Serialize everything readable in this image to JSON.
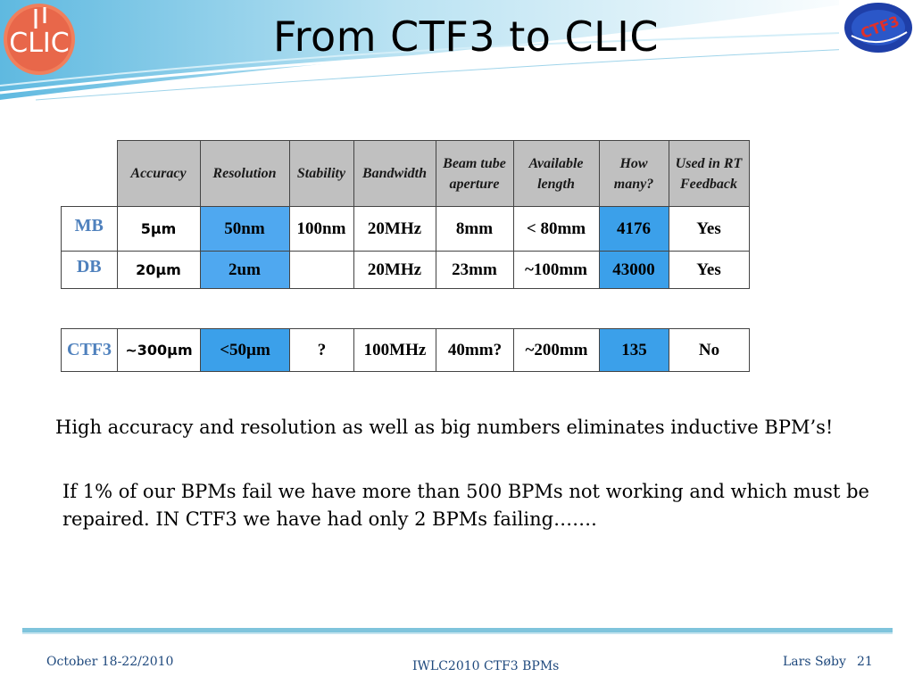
{
  "header": {
    "title": "From CTF3 to CLIC",
    "logo_left_text": "CLIC",
    "logo_right_text": "CTF3"
  },
  "colors": {
    "highlight": "#4fa8f0",
    "header_fill": "#c0c0c0",
    "label_blue": "#4f81bd",
    "footer_text": "#1f497d"
  },
  "table1": {
    "headers": [
      "Accuracy",
      "Resolution",
      "Stability",
      "Bandwidth",
      "Beam tube aperture",
      "Available length",
      "How many?",
      "Used in RT Feedback"
    ],
    "rows": [
      {
        "label": "MB",
        "accuracy": "5µm",
        "resolution": "50nm",
        "stability": "100nm",
        "bandwidth": "20MHz",
        "aperture": "8mm",
        "length": "< 80mm",
        "count": "4176",
        "feedback": "Yes"
      },
      {
        "label": "DB",
        "accuracy": "20µm",
        "resolution": "2um",
        "stability": "",
        "bandwidth": "20MHz",
        "aperture": "23mm",
        "length": "~100mm",
        "count": "43000",
        "feedback": "Yes"
      }
    ]
  },
  "table2": {
    "row": {
      "label": "CTF3",
      "accuracy": "~300µm",
      "resolution": "<50µm",
      "stability": "?",
      "bandwidth": "100MHz",
      "aperture": "40mm?",
      "length": "~200mm",
      "count": "135",
      "feedback": "No"
    }
  },
  "body": {
    "line1": "High accuracy and resolution as well as big numbers eliminates inductive BPM’s!",
    "line2": "If  1% of our BPMs fail we have more than 500 BPMs not working and which must be repaired. IN CTF3 we have had only 2 BPMs failing……."
  },
  "footer": {
    "date": "October  18-22/2010",
    "event": "IWLC2010   CTF3 BPMs",
    "author": "Lars Søby",
    "page": "21"
  }
}
